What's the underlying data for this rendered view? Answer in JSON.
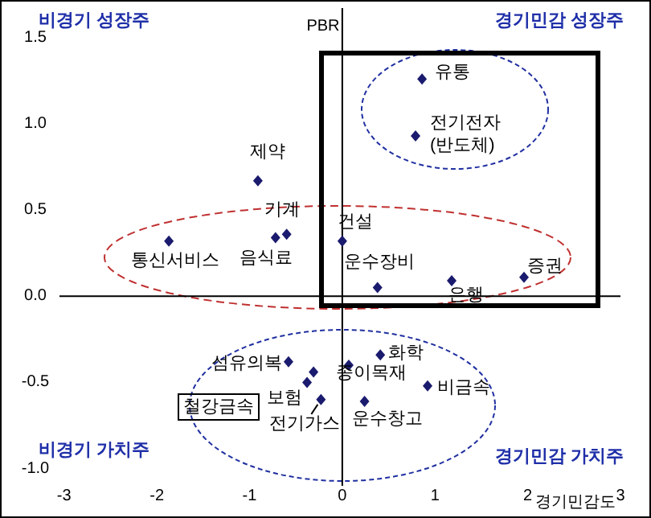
{
  "chart_data": {
    "type": "scatter",
    "xlabel": "경기민감도",
    "ylabel": "PBR",
    "xlim": [
      -3.05,
      3
    ],
    "ylim": [
      -1.1,
      1.7
    ],
    "xticks": [
      -3,
      -2,
      -1,
      0,
      1,
      2,
      3
    ],
    "yticks": [
      {
        "value": 1.5,
        "label": "1.5"
      },
      {
        "value": 1,
        "label": "1.0"
      },
      {
        "value": 0.5,
        "label": "0.5"
      },
      {
        "value": 0,
        "label": "0.0"
      },
      {
        "value": -0.5,
        "label": "-0.5"
      },
      {
        "value": -1,
        "label": "-1.0"
      }
    ],
    "marker": "diamond",
    "series": [
      {
        "color": "#1a1a6e",
        "x": [
          0.86,
          0.79,
          -0.91,
          -0.72,
          -0.6,
          0.0,
          -1.87,
          0.38,
          1.18,
          1.96,
          -0.58,
          -0.38,
          -0.31,
          -0.23,
          0.07,
          0.41,
          0.92,
          0.24
        ],
        "values": [
          1.26,
          0.93,
          0.67,
          0.34,
          0.36,
          0.32,
          0.32,
          0.05,
          0.09,
          0.11,
          -0.38,
          -0.5,
          -0.44,
          -0.6,
          -0.4,
          -0.34,
          -0.52,
          -0.61
        ]
      }
    ],
    "annotations": [
      {
        "text": "유통",
        "x": 0.86,
        "y": 1.26
      },
      {
        "text": "전기전자\n(반도체)",
        "x": 0.79,
        "y": 0.93
      },
      {
        "text": "제약",
        "x": -0.91,
        "y": 0.67
      },
      {
        "text": "음식료",
        "x": -0.72,
        "y": 0.34
      },
      {
        "text": "기계",
        "x": -0.6,
        "y": 0.36
      },
      {
        "text": "건설",
        "x": 0.0,
        "y": 0.32
      },
      {
        "text": "통신서비스",
        "x": -1.87,
        "y": 0.32
      },
      {
        "text": "운수장비",
        "x": 0.38,
        "y": 0.05
      },
      {
        "text": "은행",
        "x": 1.18,
        "y": 0.09
      },
      {
        "text": "증권",
        "x": 1.96,
        "y": 0.11
      },
      {
        "text": "섬유의복",
        "x": -0.58,
        "y": -0.38
      },
      {
        "text": "보험",
        "x": -0.38,
        "y": -0.5
      },
      "철강금속",
      {
        "text": "전기가스",
        "x": -0.23,
        "y": -0.6
      },
      {
        "text": "종이목재",
        "x": 0.07,
        "y": -0.4
      },
      {
        "text": "화학",
        "x": 0.41,
        "y": -0.34
      },
      {
        "text": "비금속",
        "x": 0.92,
        "y": -0.52
      },
      {
        "text": "운수창고",
        "x": 0.24,
        "y": -0.61
      },
      "비경기 성장주",
      "경기민감 성장주",
      "비경기 가치주",
      "경기민감 가치주"
    ]
  }
}
